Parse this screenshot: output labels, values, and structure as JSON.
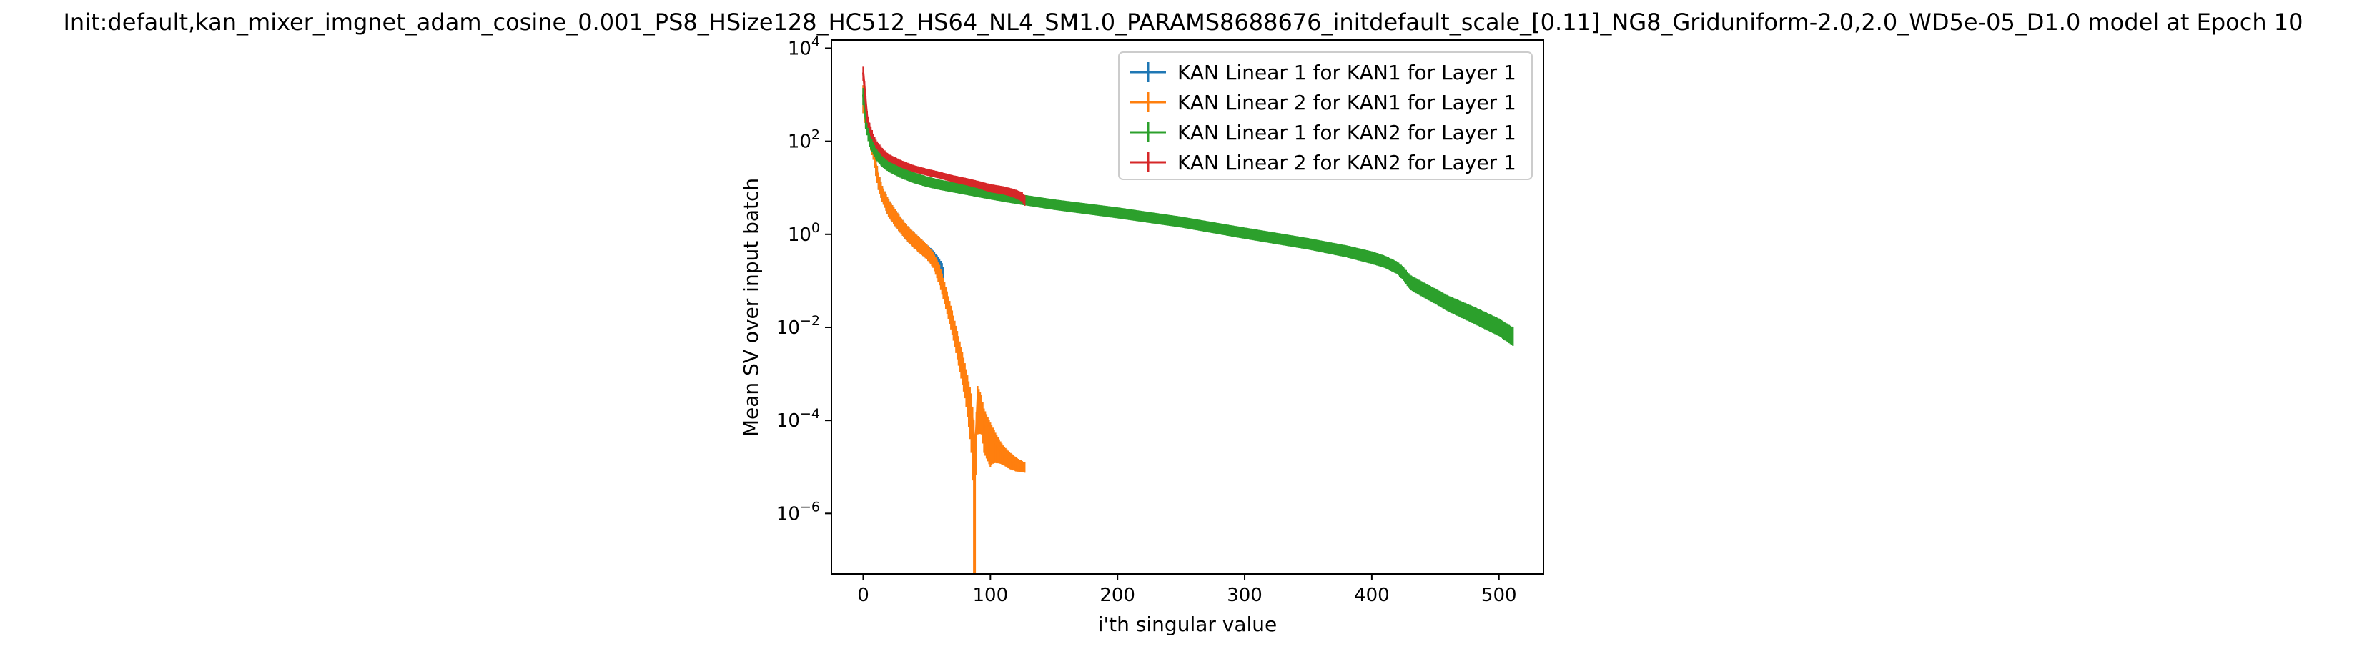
{
  "chart_data": {
    "type": "line",
    "title": "Init:default,kan_mixer_imgnet_adam_cosine_0.001_PS8_HSize128_HC512_HS64_NL4_SM1.0_PARAMS8688676_initdefault_scale_[0.11]_NG8_Griduniform-2.0,2.0_WD5e-05_D1.0 model at Epoch 10",
    "xlabel": "i'th singular value",
    "ylabel": "Mean SV over input batch",
    "xlim": [
      -25,
      535
    ],
    "ylim": [
      5e-08,
      15000
    ],
    "yscale": "log",
    "grid": false,
    "legend_position": "upper right",
    "x_ticks": [
      {
        "value": 0,
        "label": "0"
      },
      {
        "value": 100,
        "label": "100"
      },
      {
        "value": 200,
        "label": "200"
      },
      {
        "value": 300,
        "label": "300"
      },
      {
        "value": 400,
        "label": "400"
      },
      {
        "value": 500,
        "label": "500"
      }
    ],
    "y_ticks": [
      {
        "value": 1e-06,
        "base": "10",
        "exp": "−6"
      },
      {
        "value": 0.0001,
        "base": "10",
        "exp": "−4"
      },
      {
        "value": 0.01,
        "base": "10",
        "exp": "−2"
      },
      {
        "value": 1,
        "base": "10",
        "exp": "0"
      },
      {
        "value": 100,
        "base": "10",
        "exp": "2"
      },
      {
        "value": 10000,
        "base": "10",
        "exp": "4"
      }
    ],
    "series": [
      {
        "name": "KAN Linear 1 for KAN1 for Layer 1",
        "color": "#1f77b4",
        "x": [
          0,
          1,
          3,
          5,
          8,
          10,
          12,
          15,
          20,
          25,
          30,
          35,
          40,
          45,
          50,
          55,
          60,
          62,
          63
        ],
        "y": [
          1000,
          600,
          300,
          150,
          70,
          30,
          15,
          8,
          4,
          2.5,
          1.6,
          1.1,
          0.8,
          0.6,
          0.45,
          0.33,
          0.22,
          0.18,
          0.15
        ],
        "err": [
          600,
          350,
          150,
          70,
          30,
          12,
          6,
          3,
          1.6,
          1,
          0.6,
          0.4,
          0.3,
          0.22,
          0.16,
          0.12,
          0.08,
          0.06,
          0.05
        ]
      },
      {
        "name": "KAN Linear 2 for KAN1 for Layer 1",
        "color": "#ff7f0e",
        "x": [
          0,
          1,
          3,
          5,
          8,
          10,
          12,
          15,
          20,
          25,
          30,
          35,
          40,
          45,
          50,
          55,
          60,
          65,
          70,
          75,
          80,
          85,
          87,
          88,
          90,
          93,
          95,
          100,
          105,
          110,
          115,
          120,
          127
        ],
        "y": [
          1000,
          600,
          300,
          150,
          70,
          30,
          15,
          8,
          4,
          2.5,
          1.6,
          1.1,
          0.8,
          0.6,
          0.45,
          0.3,
          0.15,
          0.05,
          0.015,
          0.004,
          0.001,
          0.0002,
          5e-05,
          2e-05,
          0.0003,
          0.0002,
          0.0001,
          5e-05,
          3e-05,
          2e-05,
          1.5e-05,
          1.2e-05,
          1e-05
        ],
        "err": [
          600,
          350,
          150,
          70,
          30,
          12,
          6,
          3,
          1.6,
          1,
          0.6,
          0.4,
          0.3,
          0.22,
          0.16,
          0.11,
          0.07,
          0.025,
          0.008,
          0.0025,
          0.0007,
          0.00018,
          5e-05,
          2e-05,
          0.00025,
          0.00015,
          8e-05,
          4e-05,
          1.8e-05,
          9e-06,
          6e-06,
          4e-06,
          2.5e-06
        ]
      },
      {
        "name": "KAN Linear 1 for KAN2 for Layer 1",
        "color": "#2ca02c",
        "x": [
          0,
          2,
          5,
          10,
          15,
          20,
          30,
          40,
          50,
          60,
          80,
          100,
          120,
          150,
          200,
          250,
          300,
          350,
          380,
          400,
          410,
          420,
          425,
          430,
          440,
          450,
          460,
          480,
          500,
          511
        ],
        "y": [
          1000,
          300,
          120,
          60,
          40,
          30,
          22,
          17,
          14,
          12,
          9.5,
          7.5,
          6,
          4.5,
          3,
          1.9,
          1.1,
          0.65,
          0.45,
          0.33,
          0.27,
          0.2,
          0.15,
          0.1,
          0.07,
          0.05,
          0.035,
          0.02,
          0.011,
          0.007
        ],
        "err": [
          400,
          120,
          45,
          20,
          12,
          8,
          6,
          4.5,
          3.6,
          3,
          2.4,
          1.9,
          1.5,
          1.15,
          0.8,
          0.5,
          0.3,
          0.18,
          0.13,
          0.1,
          0.08,
          0.06,
          0.05,
          0.035,
          0.025,
          0.018,
          0.013,
          0.008,
          0.0045,
          0.003
        ]
      },
      {
        "name": "KAN Linear 2 for KAN2 for Layer 1",
        "color": "#d62728",
        "x": [
          0,
          1,
          2,
          3,
          5,
          8,
          10,
          15,
          20,
          30,
          40,
          50,
          60,
          70,
          80,
          90,
          100,
          110,
          115,
          120,
          125,
          127
        ],
        "y": [
          3000,
          1500,
          700,
          350,
          200,
          120,
          90,
          60,
          45,
          33,
          26,
          22,
          19,
          16,
          14,
          12,
          10,
          9,
          8.3,
          7.5,
          6.5,
          5.5
        ],
        "err": [
          1000,
          500,
          220,
          100,
          50,
          25,
          18,
          12,
          8,
          6,
          4.5,
          3.8,
          3.2,
          2.8,
          2.5,
          2.2,
          2,
          1.8,
          1.7,
          1.6,
          1.5,
          1.4
        ]
      }
    ]
  }
}
